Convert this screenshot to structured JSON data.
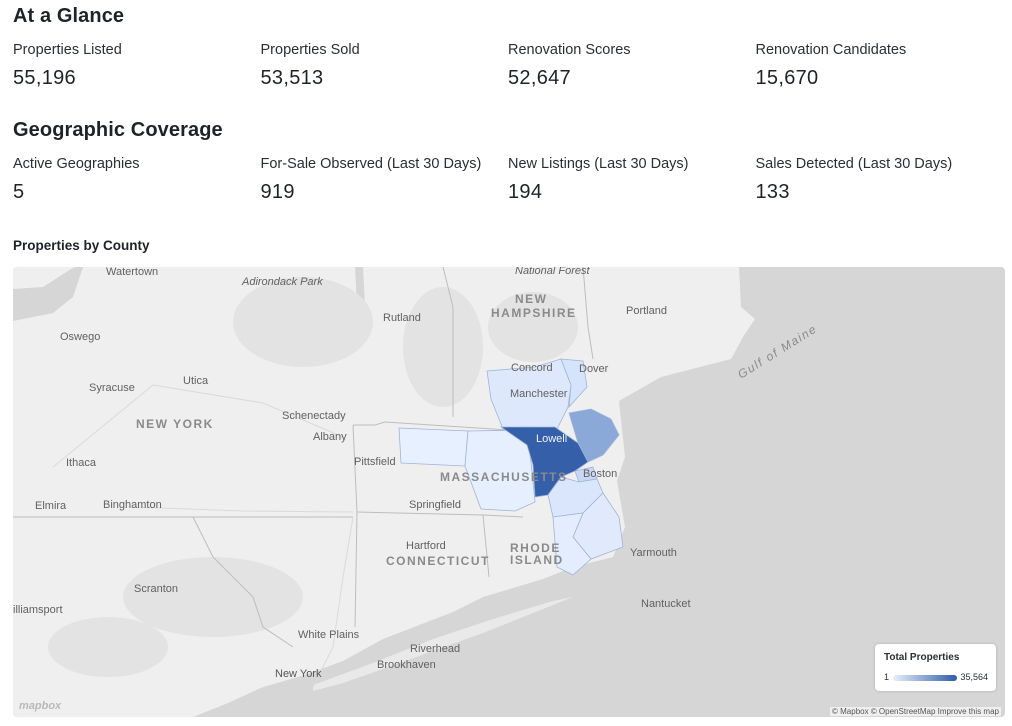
{
  "at_a_glance": {
    "title": "At a Glance",
    "stats": [
      {
        "label": "Properties Listed",
        "value": "55,196"
      },
      {
        "label": "Properties Sold",
        "value": "53,513"
      },
      {
        "label": "Renovation Scores",
        "value": "52,647"
      },
      {
        "label": "Renovation Candidates",
        "value": "15,670"
      }
    ]
  },
  "geographic_coverage": {
    "title": "Geographic Coverage",
    "stats": [
      {
        "label": "Active Geographies",
        "value": "5"
      },
      {
        "label": "For-Sale Observed (Last 30 Days)",
        "value": "919"
      },
      {
        "label": "New Listings (Last 30 Days)",
        "value": "194"
      },
      {
        "label": "Sales Detected (Last 30 Days)",
        "value": "133"
      }
    ]
  },
  "map": {
    "title": "Properties by County",
    "labels": {
      "watertown": "Watertown",
      "adirondack": "Adirondack Park",
      "national_forest": "National Forest",
      "oswego": "Oswego",
      "rutland": "Rutland",
      "new_hampshire_1": "NEW",
      "new_hampshire_2": "HAMPSHIRE",
      "portland": "Portland",
      "gulf_of_maine": "Gulf of Maine",
      "syracuse": "Syracuse",
      "utica": "Utica",
      "concord": "Concord",
      "dover": "Dover",
      "manchester": "Manchester",
      "new_york_state": "NEW YORK",
      "schenectady": "Schenectady",
      "albany": "Albany",
      "lowell": "Lowell",
      "pittsfield": "Pittsfield",
      "ithaca": "Ithaca",
      "boston": "Boston",
      "massachusetts": "MASSACHUSETTS",
      "elmira": "Elmira",
      "binghamton": "Binghamton",
      "springfield": "Springfield",
      "hartford": "Hartford",
      "connecticut": "CONNECTICUT",
      "rhode_1": "RHODE",
      "rhode_2": "ISLAND",
      "yarmouth": "Yarmouth",
      "scranton": "Scranton",
      "williamsport": "illiamsport",
      "nantucket": "Nantucket",
      "white_plains": "White Plains",
      "riverhead": "Riverhead",
      "new_york_city": "New York",
      "brookhaven": "Brookhaven"
    },
    "legend": {
      "title": "Total Properties",
      "min": "1",
      "max": "35,564"
    },
    "attribution": "© Mapbox © OpenStreetMap  Improve this map",
    "logo": "mapbox"
  }
}
